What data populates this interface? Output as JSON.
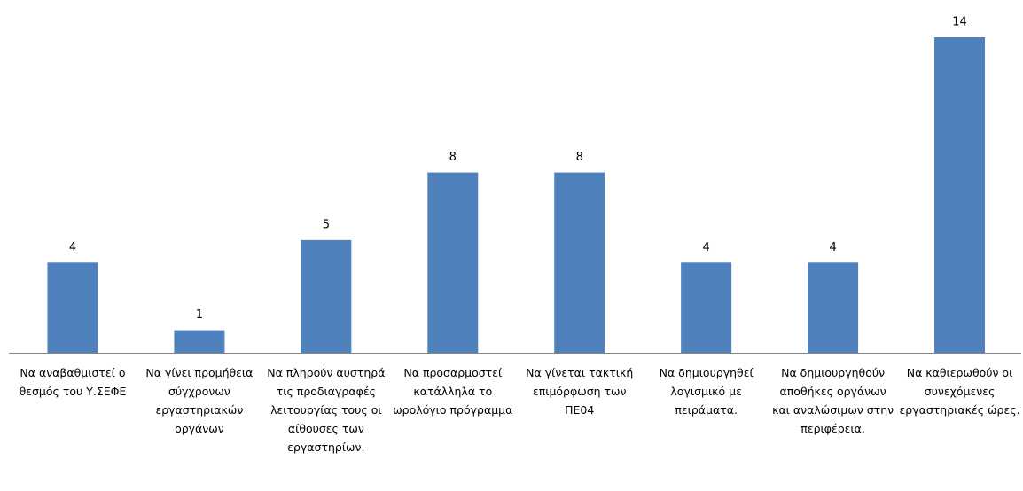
{
  "chart_data": {
    "type": "bar",
    "categories": [
      "Να αναβαθμιστεί ο θεσμός του Υ.ΣΕΦΕ",
      "Να γίνει προμήθεια σύγχρονων εργαστηριακών οργάνων",
      "Να πληρούν αυστηρά τις προδιαγραφές λειτουργίας τους οι αίθουσες των εργαστηρίων.",
      "Να προσαρμοστεί κατάλληλα το ωρολόγιο πρόγραμμα",
      "Να γίνεται τακτική επιμόρφωση των ΠΕ04",
      "Να δημιουργηθεί λογισμικό με πειράματα.",
      "Να δημιουργηθούν αποθήκες οργάνων και αναλώσιμων στην περιφέρεια.",
      "Να καθιερωθούν οι συνεχόμενες εργαστηριακές ώρες."
    ],
    "values": [
      4,
      1,
      5,
      8,
      8,
      4,
      4,
      14
    ],
    "color": "#4f81bd"
  }
}
